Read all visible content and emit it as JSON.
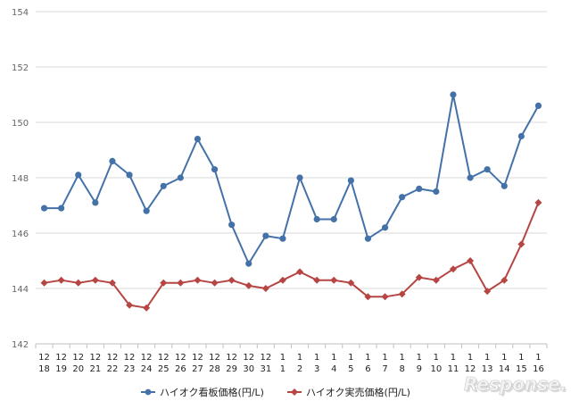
{
  "chart_data": {
    "type": "line",
    "categories": [
      [
        "12",
        "18"
      ],
      [
        "12",
        "19"
      ],
      [
        "12",
        "20"
      ],
      [
        "12",
        "21"
      ],
      [
        "12",
        "22"
      ],
      [
        "12",
        "23"
      ],
      [
        "12",
        "24"
      ],
      [
        "12",
        "25"
      ],
      [
        "12",
        "26"
      ],
      [
        "12",
        "27"
      ],
      [
        "12",
        "28"
      ],
      [
        "12",
        "29"
      ],
      [
        "12",
        "30"
      ],
      [
        "12",
        "31"
      ],
      [
        "1",
        "1"
      ],
      [
        "1",
        "2"
      ],
      [
        "1",
        "3"
      ],
      [
        "1",
        "4"
      ],
      [
        "1",
        "5"
      ],
      [
        "1",
        "6"
      ],
      [
        "1",
        "7"
      ],
      [
        "1",
        "8"
      ],
      [
        "1",
        "9"
      ],
      [
        "1",
        "10"
      ],
      [
        "1",
        "11"
      ],
      [
        "1",
        "12"
      ],
      [
        "1",
        "13"
      ],
      [
        "1",
        "14"
      ],
      [
        "1",
        "15"
      ],
      [
        "1",
        "16"
      ]
    ],
    "series": [
      {
        "name": "ハイオク看板価格(円/L)",
        "color": "#4472a8",
        "marker": "circle",
        "values": [
          146.9,
          146.9,
          148.1,
          147.1,
          148.6,
          148.1,
          146.8,
          147.7,
          148.0,
          149.4,
          148.3,
          146.3,
          144.9,
          145.9,
          145.8,
          148.0,
          146.5,
          146.5,
          147.9,
          145.8,
          146.2,
          147.3,
          147.6,
          147.5,
          151.0,
          148.0,
          148.3,
          147.7,
          149.5,
          150.6
        ]
      },
      {
        "name": "ハイオク実売価格(円/L)",
        "color": "#b64543",
        "marker": "diamond",
        "values": [
          144.2,
          144.3,
          144.2,
          144.3,
          144.2,
          143.4,
          143.3,
          144.2,
          144.2,
          144.3,
          144.2,
          144.3,
          144.1,
          144.0,
          144.3,
          144.6,
          144.3,
          144.3,
          144.2,
          143.7,
          143.7,
          143.8,
          144.4,
          144.3,
          144.7,
          145.0,
          143.9,
          144.3,
          145.6,
          147.1
        ]
      }
    ],
    "ylim": [
      142,
      154
    ],
    "yticks": [
      "142",
      "144",
      "146",
      "148",
      "150",
      "152",
      "154"
    ],
    "grid": true,
    "legend_position": "bottom",
    "watermark": "Response."
  }
}
